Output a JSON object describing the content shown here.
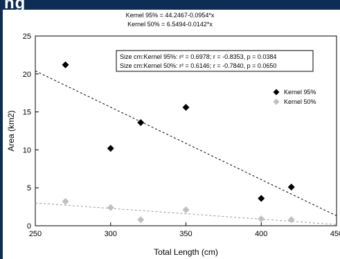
{
  "header_text": "ng",
  "equations": [
    "Kernel 95% = 44.2467-0.0954*x",
    "Kernel 50% = 6.5494-0.0142*x"
  ],
  "chart_data": {
    "type": "scatter",
    "title": "",
    "xlabel": "Total Length (cm)",
    "ylabel": "Area (km2)",
    "xlim": [
      250,
      450
    ],
    "ylim": [
      0,
      25
    ],
    "x_ticks": [
      "250",
      "300",
      "350",
      "400",
      "450"
    ],
    "y_ticks": [
      "0",
      "5",
      "10",
      "15",
      "20",
      "25"
    ],
    "grid": false,
    "legend_position": "right",
    "series": [
      {
        "name": "Kernel 95%",
        "color": "#000000",
        "marker": "diamond",
        "points": [
          [
            270,
            21.2
          ],
          [
            300,
            10.2
          ],
          [
            320,
            13.6
          ],
          [
            350,
            15.6
          ],
          [
            400,
            3.6
          ],
          [
            420,
            5.1
          ]
        ],
        "fit": {
          "intercept": 44.2467,
          "slope": -0.0954,
          "line_style": "dashed"
        }
      },
      {
        "name": "Kernel 50%",
        "color": "#c0c0c0",
        "marker": "diamond",
        "points": [
          [
            270,
            3.2
          ],
          [
            300,
            2.4
          ],
          [
            320,
            0.8
          ],
          [
            350,
            2.1
          ],
          [
            400,
            0.9
          ],
          [
            420,
            0.8
          ]
        ],
        "fit": {
          "intercept": 6.5494,
          "slope": -0.0142,
          "line_style": "dashed"
        }
      }
    ],
    "stats_box": [
      "Size cm:Kernel 95%:  r² = 0.6978;  r = -0.8353, p = 0.0384",
      "Size cm:Kernel 50%:  r² = 0.6146;  r = -0.7840, p = 0.0650"
    ]
  }
}
